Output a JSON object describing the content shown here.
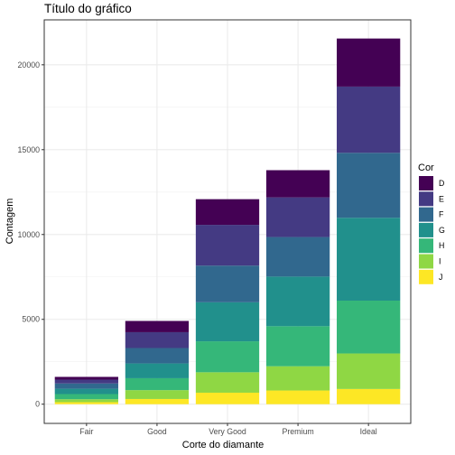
{
  "chart_data": {
    "type": "bar",
    "stacked": true,
    "title": "Título do gráfico",
    "xlabel": "Corte do diamante",
    "ylabel": "Contagem",
    "categories": [
      "Fair",
      "Good",
      "Very Good",
      "Premium",
      "Ideal"
    ],
    "ylim": [
      0,
      22650
    ],
    "yticks": [
      0,
      5000,
      10000,
      15000,
      20000
    ],
    "ytick_labels": [
      "0",
      "5000",
      "10000",
      "15000",
      "20000"
    ],
    "grid": true,
    "legend": {
      "title": "Cor",
      "position": "right"
    },
    "series": [
      {
        "name": "D",
        "color": "#440154",
        "values": [
          163,
          662,
          1513,
          1603,
          2834
        ]
      },
      {
        "name": "E",
        "color": "#443A83",
        "values": [
          224,
          933,
          2400,
          2337,
          3903
        ]
      },
      {
        "name": "F",
        "color": "#31688E",
        "values": [
          312,
          909,
          2164,
          2331,
          3826
        ]
      },
      {
        "name": "G",
        "color": "#21908C",
        "values": [
          314,
          871,
          2299,
          2924,
          4884
        ]
      },
      {
        "name": "H",
        "color": "#35B779",
        "values": [
          303,
          702,
          1824,
          2360,
          3115
        ]
      },
      {
        "name": "I",
        "color": "#8FD744",
        "values": [
          175,
          522,
          1204,
          1428,
          2093
        ]
      },
      {
        "name": "J",
        "color": "#FDE725",
        "values": [
          119,
          307,
          678,
          808,
          896
        ]
      }
    ]
  }
}
